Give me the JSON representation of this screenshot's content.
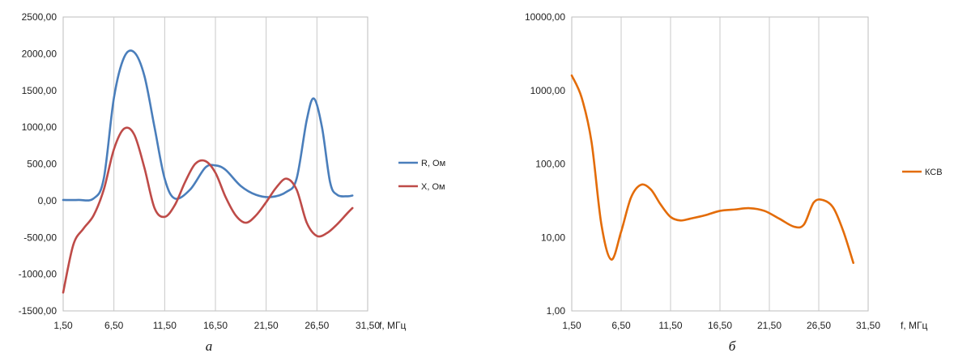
{
  "chart_data": [
    {
      "type": "line",
      "panel_label": "а",
      "xlabel": "f, МГц",
      "ylabel": "",
      "x_ticks": [
        "1,50",
        "6,50",
        "11,50",
        "16,50",
        "21,50",
        "26,50",
        "31,50"
      ],
      "y_ticks": [
        "-1500,00",
        "-1000,00",
        "-500,00",
        "0,00",
        "500,00",
        "1000,00",
        "1500,00",
        "2000,00",
        "2500,00"
      ],
      "xlim": [
        1.5,
        31.5
      ],
      "ylim": [
        -1500,
        2500
      ],
      "grid": "vertical",
      "legend_position": "right",
      "series": [
        {
          "name": "R, Ом",
          "color": "#4a7ebb",
          "x": [
            1.5,
            3,
            4.5,
            5.5,
            6.5,
            7.5,
            8.5,
            9.5,
            10.5,
            11.5,
            12.5,
            14,
            15.5,
            16.5,
            17.5,
            19,
            20.5,
            22,
            23.5,
            24.5,
            25.5,
            26.2,
            27,
            27.8,
            28.5,
            29.5,
            30
          ],
          "y": [
            10,
            10,
            30,
            300,
            1400,
            1950,
            2020,
            1700,
            1000,
            300,
            30,
            150,
            450,
            480,
            420,
            200,
            80,
            50,
            120,
            300,
            1100,
            1390,
            1000,
            250,
            80,
            60,
            70
          ]
        },
        {
          "name": "X, Ом",
          "color": "#be4b48",
          "x": [
            1.5,
            2.5,
            3.5,
            4.5,
            5.5,
            6.5,
            7.5,
            8.5,
            9.5,
            10.5,
            11.5,
            12.5,
            13.5,
            14.5,
            15.5,
            16.5,
            17.5,
            18.5,
            19.5,
            20.5,
            21.5,
            22.5,
            23.5,
            24.5,
            25.5,
            26.5,
            27.5,
            28.5,
            29.5,
            30
          ],
          "y": [
            -1250,
            -600,
            -380,
            -200,
            150,
            700,
            980,
            900,
            450,
            -100,
            -220,
            -60,
            250,
            500,
            540,
            380,
            50,
            -200,
            -300,
            -200,
            -20,
            180,
            300,
            150,
            -300,
            -480,
            -440,
            -320,
            -170,
            -100
          ]
        }
      ]
    },
    {
      "type": "line",
      "panel_label": "б",
      "xlabel": "f, МГц",
      "ylabel": "",
      "x_ticks": [
        "1,50",
        "6,50",
        "11,50",
        "16,50",
        "21,50",
        "26,50",
        "31,50"
      ],
      "y_ticks": [
        "1,00",
        "10,00",
        "100,00",
        "1000,00",
        "10000,00"
      ],
      "xlim": [
        1.5,
        31.5
      ],
      "ylim": [
        1,
        10000
      ],
      "y_scale": "log",
      "grid": "vertical",
      "legend_position": "right",
      "series": [
        {
          "name": "КСВ",
          "color": "#e36c09",
          "x": [
            1.5,
            2.5,
            3.5,
            4.5,
            5.5,
            6.5,
            7.5,
            8.5,
            9.5,
            10.5,
            11.5,
            12.5,
            13.5,
            15,
            16.5,
            18,
            19.5,
            21,
            22.5,
            24,
            25,
            26,
            27,
            28,
            29,
            30
          ],
          "y": [
            1600,
            800,
            200,
            15,
            5,
            12,
            35,
            52,
            45,
            28,
            19,
            17,
            18,
            20,
            23,
            24,
            25,
            23,
            18,
            14,
            15,
            30,
            32,
            25,
            12,
            4.5
          ]
        }
      ]
    }
  ]
}
